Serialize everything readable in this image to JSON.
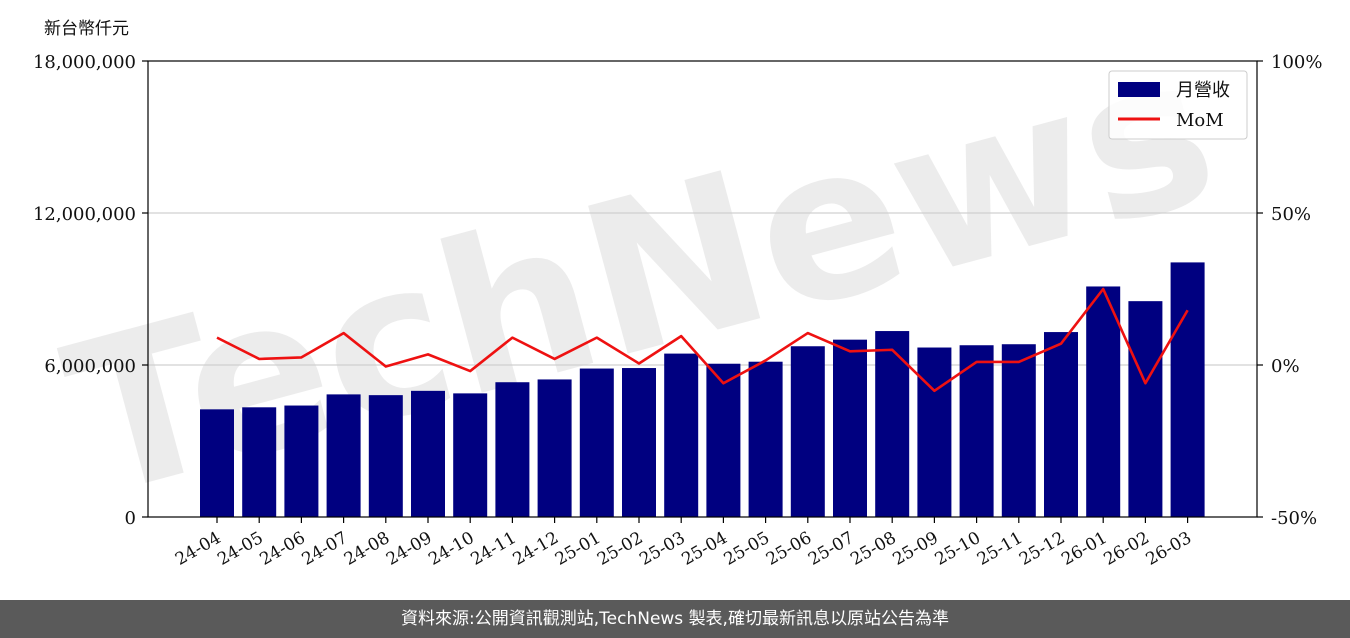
{
  "header": {
    "y_unit_label": "新台幣仟元"
  },
  "footer": {
    "source_text": "資料來源:公開資訊觀測站,TechNews 製表,確切最新訊息以原站公告為準"
  },
  "watermark": {
    "text": "TechNews"
  },
  "colors": {
    "bar": "#000080",
    "line": "#ee1111",
    "grid": "#d0d0d0",
    "footer_bg": "#5a5a5a"
  },
  "chart_data": {
    "type": "bar",
    "categories": [
      "24-04",
      "24-05",
      "24-06",
      "24-07",
      "24-08",
      "24-09",
      "24-10",
      "24-11",
      "24-12",
      "25-01",
      "25-02",
      "25-03",
      "25-04",
      "25-05",
      "25-06",
      "25-07",
      "25-08",
      "25-09",
      "25-10",
      "25-11",
      "25-12",
      "26-01",
      "26-02",
      "26-03"
    ],
    "series": [
      {
        "name": "月營收",
        "type": "bar",
        "axis": "left",
        "values": [
          4250000,
          4330000,
          4400000,
          4840000,
          4810000,
          4980000,
          4880000,
          5320000,
          5430000,
          5860000,
          5880000,
          6450000,
          6050000,
          6130000,
          6740000,
          7000000,
          7340000,
          6690000,
          6780000,
          6820000,
          7300000,
          9100000,
          8520000,
          10050000
        ]
      },
      {
        "name": "MoM",
        "type": "line",
        "axis": "right",
        "values": [
          9.0,
          2.0,
          2.5,
          10.5,
          -0.5,
          3.5,
          -2.0,
          9.0,
          2.0,
          9.0,
          0.5,
          9.5,
          -6.0,
          1.5,
          10.5,
          4.5,
          5.0,
          -8.5,
          1.0,
          1.0,
          7.0,
          25.0,
          -6.0,
          18.0
        ]
      }
    ],
    "y_left": {
      "ticks": [
        0,
        6000000,
        12000000,
        18000000
      ],
      "tick_labels": [
        "0",
        "6,000,000",
        "12,000,000",
        "18,000,000"
      ],
      "ylim": [
        0,
        18000000
      ]
    },
    "y_right": {
      "ticks": [
        -50,
        0,
        50,
        100
      ],
      "tick_labels": [
        "-50%",
        "0%",
        "50%",
        "100%"
      ],
      "ylim": [
        -50,
        100
      ]
    },
    "grid": "horizontal",
    "legend": {
      "placement": "top-right",
      "entries": [
        "月營收",
        "MoM"
      ]
    }
  }
}
